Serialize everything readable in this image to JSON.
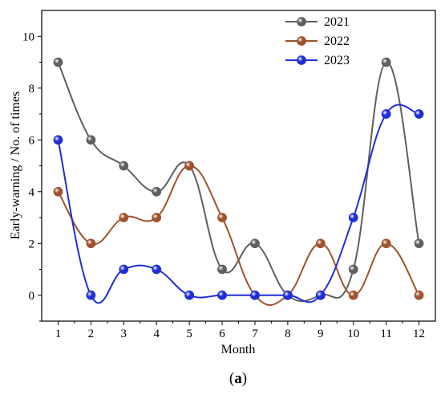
{
  "chart_data": {
    "type": "line",
    "xlabel": "Month",
    "ylabel": "Early-warning / No. of times",
    "caption_prefix": "(",
    "caption_letter": "a",
    "caption_suffix": ")",
    "categories": [
      1,
      2,
      3,
      4,
      5,
      6,
      7,
      8,
      9,
      10,
      11,
      12
    ],
    "xlim": [
      0.5,
      12.5
    ],
    "ylim": [
      -1,
      11
    ],
    "yticks": [
      0,
      2,
      4,
      6,
      8,
      10
    ],
    "grid": false,
    "legend_position": "top-right",
    "smooth": true,
    "series": [
      {
        "name": "2021",
        "color": "#5f5f5f",
        "values": [
          9,
          6,
          5,
          4,
          5,
          1,
          2,
          0,
          0,
          1,
          9,
          2
        ]
      },
      {
        "name": "2022",
        "color": "#a0522d",
        "values": [
          4,
          2,
          3,
          3,
          5,
          3,
          0,
          0,
          2,
          0,
          2,
          0
        ]
      },
      {
        "name": "2023",
        "color": "#1f2fd6",
        "values": [
          6,
          0,
          1,
          1,
          0,
          0,
          0,
          0,
          0,
          3,
          7,
          7
        ]
      }
    ]
  }
}
